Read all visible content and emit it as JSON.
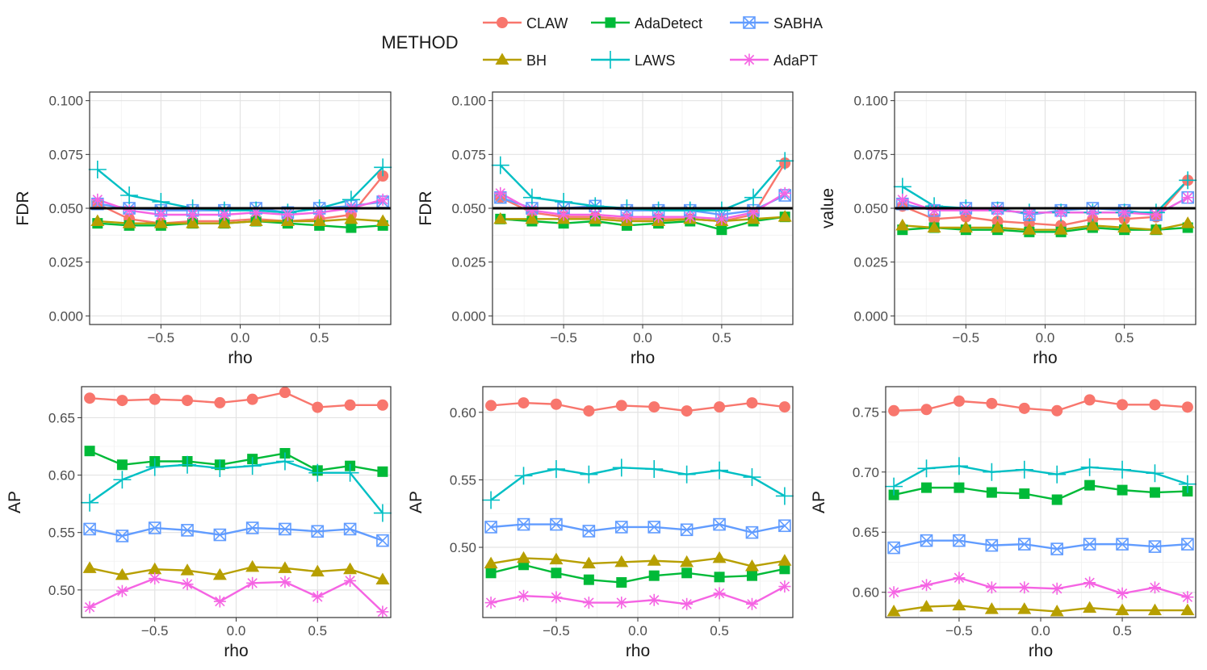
{
  "legend": {
    "title": "METHOD",
    "entries": [
      {
        "name": "CLAW",
        "color": "#F8766D",
        "shape": "circle"
      },
      {
        "name": "AdaDetect",
        "color": "#00BA38",
        "shape": "square"
      },
      {
        "name": "SABHA",
        "color": "#619CFF",
        "shape": "boxx"
      },
      {
        "name": "BH",
        "color": "#B79F00",
        "shape": "triangle"
      },
      {
        "name": "LAWS",
        "color": "#00BFC4",
        "shape": "plus"
      },
      {
        "name": "AdaPT",
        "color": "#F564E3",
        "shape": "star"
      }
    ]
  },
  "chart_data": [
    {
      "type": "line",
      "title": "",
      "xlabel": "rho",
      "ylabel": "FDR",
      "x": [
        -0.9,
        -0.7,
        -0.5,
        -0.3,
        -0.1,
        0.1,
        0.3,
        0.5,
        0.7,
        0.9
      ],
      "xlim": [
        -0.95,
        0.95
      ],
      "ylim": [
        -0.004,
        0.104
      ],
      "xticks": [
        -0.5,
        0.0,
        0.5
      ],
      "xticklabels": [
        "−0.5",
        "0.0",
        "0.5"
      ],
      "yticks": [
        0.0,
        0.025,
        0.05,
        0.075,
        0.1
      ],
      "yticklabels": [
        "0.000",
        "0.025",
        "0.050",
        "0.075",
        "0.100"
      ],
      "hline": 0.05,
      "series": [
        {
          "name": "CLAW",
          "values": [
            0.052,
            0.045,
            0.043,
            0.044,
            0.044,
            0.045,
            0.044,
            0.045,
            0.047,
            0.065
          ]
        },
        {
          "name": "AdaDetect",
          "values": [
            0.043,
            0.042,
            0.042,
            0.043,
            0.043,
            0.044,
            0.043,
            0.042,
            0.041,
            0.042
          ]
        },
        {
          "name": "SABHA",
          "values": [
            0.052,
            0.05,
            0.049,
            0.049,
            0.049,
            0.05,
            0.048,
            0.05,
            0.051,
            0.053
          ]
        },
        {
          "name": "BH",
          "values": [
            0.044,
            0.043,
            0.043,
            0.043,
            0.043,
            0.044,
            0.044,
            0.044,
            0.045,
            0.044
          ]
        },
        {
          "name": "LAWS",
          "values": [
            0.068,
            0.056,
            0.053,
            0.05,
            0.049,
            0.049,
            0.048,
            0.05,
            0.054,
            0.069
          ]
        },
        {
          "name": "AdaPT",
          "values": [
            0.054,
            0.049,
            0.047,
            0.047,
            0.047,
            0.048,
            0.047,
            0.048,
            0.05,
            0.054
          ]
        }
      ]
    },
    {
      "type": "line",
      "title": "",
      "xlabel": "rho",
      "ylabel": "FDR",
      "x": [
        -0.9,
        -0.7,
        -0.5,
        -0.3,
        -0.1,
        0.1,
        0.3,
        0.5,
        0.7,
        0.9
      ],
      "xlim": [
        -0.95,
        0.95
      ],
      "ylim": [
        -0.004,
        0.104
      ],
      "xticks": [
        -0.5,
        0.0,
        0.5
      ],
      "xticklabels": [
        "−0.5",
        "0.0",
        "0.5"
      ],
      "yticks": [
        0.0,
        0.025,
        0.05,
        0.075,
        0.1
      ],
      "yticklabels": [
        "0.000",
        "0.025",
        "0.050",
        "0.075",
        "0.100"
      ],
      "hline": 0.05,
      "series": [
        {
          "name": "CLAW",
          "values": [
            0.055,
            0.048,
            0.046,
            0.046,
            0.045,
            0.045,
            0.045,
            0.044,
            0.047,
            0.071
          ]
        },
        {
          "name": "AdaDetect",
          "values": [
            0.045,
            0.044,
            0.043,
            0.044,
            0.042,
            0.043,
            0.044,
            0.04,
            0.044,
            0.046
          ]
        },
        {
          "name": "SABHA",
          "values": [
            0.055,
            0.05,
            0.05,
            0.051,
            0.049,
            0.049,
            0.049,
            0.047,
            0.049,
            0.056
          ]
        },
        {
          "name": "BH",
          "values": [
            0.045,
            0.045,
            0.045,
            0.045,
            0.044,
            0.044,
            0.045,
            0.044,
            0.045,
            0.046
          ]
        },
        {
          "name": "LAWS",
          "values": [
            0.07,
            0.055,
            0.053,
            0.051,
            0.05,
            0.049,
            0.049,
            0.049,
            0.055,
            0.072
          ]
        },
        {
          "name": "AdaPT",
          "values": [
            0.057,
            0.049,
            0.047,
            0.047,
            0.046,
            0.046,
            0.046,
            0.045,
            0.048,
            0.057
          ]
        }
      ]
    },
    {
      "type": "line",
      "title": "",
      "xlabel": "rho",
      "ylabel": "value",
      "x": [
        -0.9,
        -0.7,
        -0.5,
        -0.3,
        -0.1,
        0.1,
        0.3,
        0.5,
        0.7,
        0.9
      ],
      "xlim": [
        -0.95,
        0.95
      ],
      "ylim": [
        -0.004,
        0.104
      ],
      "xticks": [
        -0.5,
        0.0,
        0.5
      ],
      "xticklabels": [
        "−0.5",
        "0.0",
        "0.5"
      ],
      "yticks": [
        0.0,
        0.025,
        0.05,
        0.075,
        0.1
      ],
      "yticklabels": [
        "0.000",
        "0.025",
        "0.050",
        "0.075",
        "0.100"
      ],
      "hline": 0.05,
      "series": [
        {
          "name": "CLAW",
          "values": [
            0.051,
            0.045,
            0.046,
            0.044,
            0.043,
            0.042,
            0.045,
            0.045,
            0.046,
            0.063
          ]
        },
        {
          "name": "AdaDetect",
          "values": [
            0.04,
            0.041,
            0.04,
            0.04,
            0.039,
            0.039,
            0.041,
            0.04,
            0.04,
            0.041
          ]
        },
        {
          "name": "SABHA",
          "values": [
            0.052,
            0.049,
            0.05,
            0.05,
            0.047,
            0.049,
            0.05,
            0.049,
            0.047,
            0.055
          ]
        },
        {
          "name": "BH",
          "values": [
            0.042,
            0.041,
            0.041,
            0.041,
            0.04,
            0.04,
            0.042,
            0.041,
            0.04,
            0.043
          ]
        },
        {
          "name": "LAWS",
          "values": [
            0.06,
            0.051,
            0.05,
            0.049,
            0.048,
            0.048,
            0.048,
            0.048,
            0.048,
            0.063
          ]
        },
        {
          "name": "AdaPT",
          "values": [
            0.054,
            0.049,
            0.049,
            0.049,
            0.048,
            0.048,
            0.048,
            0.048,
            0.047,
            0.055
          ]
        }
      ]
    },
    {
      "type": "line",
      "title": "",
      "xlabel": "rho",
      "ylabel": "AP",
      "x": [
        -0.9,
        -0.7,
        -0.5,
        -0.3,
        -0.1,
        0.1,
        0.3,
        0.5,
        0.7,
        0.9
      ],
      "xlim": [
        -0.95,
        0.95
      ],
      "ylim": [
        0.476,
        0.677
      ],
      "xticks": [
        -0.5,
        0.0,
        0.5
      ],
      "xticklabels": [
        "−0.5",
        "0.0",
        "0.5"
      ],
      "yticks": [
        0.5,
        0.55,
        0.6,
        0.65
      ],
      "yticklabels": [
        "0.50",
        "0.55",
        "0.60",
        "0.65"
      ],
      "series": [
        {
          "name": "CLAW",
          "values": [
            0.667,
            0.665,
            0.666,
            0.665,
            0.663,
            0.666,
            0.672,
            0.659,
            0.661,
            0.661
          ]
        },
        {
          "name": "AdaDetect",
          "values": [
            0.621,
            0.609,
            0.612,
            0.612,
            0.609,
            0.614,
            0.619,
            0.604,
            0.608,
            0.603
          ]
        },
        {
          "name": "SABHA",
          "values": [
            0.553,
            0.547,
            0.554,
            0.552,
            0.548,
            0.554,
            0.553,
            0.551,
            0.553,
            0.543
          ]
        },
        {
          "name": "BH",
          "values": [
            0.519,
            0.513,
            0.518,
            0.517,
            0.513,
            0.52,
            0.519,
            0.516,
            0.518,
            0.509
          ]
        },
        {
          "name": "LAWS",
          "values": [
            0.576,
            0.596,
            0.607,
            0.609,
            0.606,
            0.608,
            0.612,
            0.602,
            0.602,
            0.567
          ]
        },
        {
          "name": "AdaPT",
          "values": [
            0.485,
            0.499,
            0.51,
            0.505,
            0.49,
            0.506,
            0.507,
            0.494,
            0.508,
            0.481
          ]
        }
      ]
    },
    {
      "type": "line",
      "title": "",
      "xlabel": "rho",
      "ylabel": "AP",
      "x": [
        -0.9,
        -0.7,
        -0.5,
        -0.3,
        -0.1,
        0.1,
        0.3,
        0.5,
        0.7,
        0.9
      ],
      "xlim": [
        -0.95,
        0.95
      ],
      "ylim": [
        0.448,
        0.619
      ],
      "xticks": [
        -0.5,
        0.0,
        0.5
      ],
      "xticklabels": [
        "−0.5",
        "0.0",
        "0.5"
      ],
      "yticks": [
        0.5,
        0.55,
        0.6
      ],
      "yticklabels": [
        "0.50",
        "0.55",
        "0.60"
      ],
      "series": [
        {
          "name": "CLAW",
          "values": [
            0.605,
            0.607,
            0.606,
            0.601,
            0.605,
            0.604,
            0.601,
            0.604,
            0.607,
            0.604
          ]
        },
        {
          "name": "AdaDetect",
          "values": [
            0.481,
            0.487,
            0.481,
            0.476,
            0.474,
            0.479,
            0.481,
            0.478,
            0.479,
            0.484
          ]
        },
        {
          "name": "SABHA",
          "values": [
            0.515,
            0.517,
            0.517,
            0.512,
            0.515,
            0.515,
            0.513,
            0.517,
            0.511,
            0.516
          ]
        },
        {
          "name": "BH",
          "values": [
            0.488,
            0.492,
            0.491,
            0.488,
            0.489,
            0.49,
            0.489,
            0.492,
            0.486,
            0.49
          ]
        },
        {
          "name": "LAWS",
          "values": [
            0.535,
            0.553,
            0.558,
            0.554,
            0.559,
            0.558,
            0.554,
            0.557,
            0.552,
            0.538
          ]
        },
        {
          "name": "AdaPT",
          "values": [
            0.459,
            0.464,
            0.463,
            0.459,
            0.459,
            0.461,
            0.458,
            0.466,
            0.458,
            0.471
          ]
        }
      ]
    },
    {
      "type": "line",
      "title": "",
      "xlabel": "rho",
      "ylabel": "AP",
      "x": [
        -0.9,
        -0.7,
        -0.5,
        -0.3,
        -0.1,
        0.1,
        0.3,
        0.5,
        0.7,
        0.9
      ],
      "xlim": [
        -0.95,
        0.95
      ],
      "ylim": [
        0.579,
        0.771
      ],
      "xticks": [
        -0.5,
        0.0,
        0.5
      ],
      "xticklabels": [
        "−0.5",
        "0.0",
        "0.5"
      ],
      "yticks": [
        0.6,
        0.65,
        0.7,
        0.75
      ],
      "yticklabels": [
        "0.60",
        "0.65",
        "0.70",
        "0.75"
      ],
      "series": [
        {
          "name": "CLAW",
          "values": [
            0.751,
            0.752,
            0.759,
            0.757,
            0.753,
            0.751,
            0.76,
            0.756,
            0.756,
            0.754
          ]
        },
        {
          "name": "AdaDetect",
          "values": [
            0.681,
            0.687,
            0.687,
            0.683,
            0.682,
            0.677,
            0.689,
            0.685,
            0.683,
            0.684
          ]
        },
        {
          "name": "SABHA",
          "values": [
            0.637,
            0.643,
            0.643,
            0.639,
            0.64,
            0.636,
            0.64,
            0.64,
            0.638,
            0.64
          ]
        },
        {
          "name": "BH",
          "values": [
            0.584,
            0.588,
            0.589,
            0.586,
            0.586,
            0.584,
            0.587,
            0.585,
            0.585,
            0.585
          ]
        },
        {
          "name": "LAWS",
          "values": [
            0.688,
            0.703,
            0.705,
            0.7,
            0.702,
            0.698,
            0.704,
            0.702,
            0.699,
            0.69
          ]
        },
        {
          "name": "AdaPT",
          "values": [
            0.6,
            0.606,
            0.612,
            0.604,
            0.604,
            0.603,
            0.608,
            0.599,
            0.604,
            0.596
          ]
        }
      ]
    }
  ]
}
